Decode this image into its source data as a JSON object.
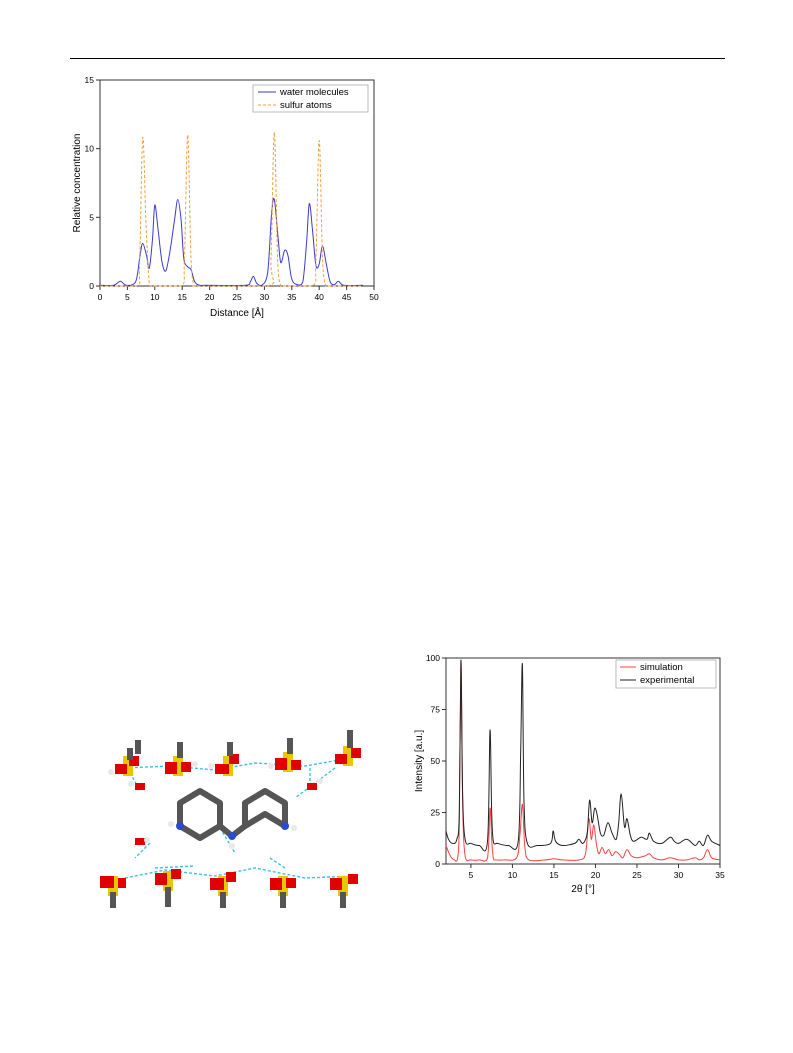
{
  "page": {
    "header_rule": true
  },
  "figures": {
    "density_profile": {
      "legend_bg": "#ffffff",
      "series_colors": {
        "water": "#3a3acc",
        "sulfur": "#f0a040"
      }
    },
    "crystal_structure": {
      "icon": "molecular-structure-image",
      "labels": {
        "nitrogen": "N",
        "hydrogen": "H"
      },
      "atom_colors": {
        "carbon": "#555555",
        "oxygen": "#e00000",
        "sulfur": "#e6c800",
        "nitrogen": "#2a4bd0",
        "hydrogen": "#e8e8e8",
        "hbond": "#40c0e0"
      }
    },
    "pxrd": {
      "series_colors": {
        "simulation": "#ff4040",
        "experimental": "#222222"
      }
    }
  },
  "chart_data": [
    {
      "type": "line",
      "title": "",
      "xlabel": "Distance [Å]",
      "ylabel": "Relative concentration",
      "xlim": [
        0,
        50
      ],
      "ylim": [
        0,
        15
      ],
      "xticks": [
        "0",
        "5",
        "10",
        "15",
        "20",
        "25",
        "30",
        "35",
        "40",
        "45",
        "50"
      ],
      "yticks": [
        "0",
        "5",
        "10",
        "15"
      ],
      "legend_position": "top-right",
      "grid": false,
      "series": [
        {
          "name": "water molecules",
          "style": "solid",
          "color": "#3a3acc",
          "x": [
            0,
            2.5,
            3.7,
            4.8,
            6.5,
            7.3,
            7.8,
            8.5,
            9.0,
            9.6,
            10.0,
            10.6,
            11.3,
            12.0,
            12.8,
            13.6,
            14.2,
            14.8,
            15.3,
            16.0,
            16.6,
            17.3,
            18.2,
            19.5,
            26.5,
            27.4,
            28.0,
            28.6,
            29.5,
            30.6,
            31.3,
            31.8,
            32.5,
            33.0,
            33.7,
            34.3,
            35.0,
            36.0,
            37.0,
            37.7,
            38.2,
            38.8,
            39.4,
            40.0,
            40.6,
            41.3,
            42.0,
            42.8,
            43.5,
            44.5,
            48
          ],
          "y": [
            0.05,
            0.05,
            0.35,
            0.05,
            0.3,
            2.2,
            3.1,
            2.2,
            1.3,
            3.5,
            5.9,
            4.1,
            1.8,
            1.1,
            2.6,
            4.8,
            6.3,
            4.8,
            2.0,
            1.4,
            1.2,
            0.3,
            0.05,
            0.05,
            0.05,
            0.3,
            0.7,
            0.2,
            0.05,
            1.0,
            5.2,
            6.3,
            3.5,
            1.7,
            2.6,
            2.2,
            0.5,
            0.1,
            0.3,
            3.2,
            6.0,
            4.0,
            1.5,
            1.6,
            2.9,
            1.6,
            0.3,
            0.1,
            0.35,
            0.05,
            0.05
          ]
        },
        {
          "name": "sulfur atoms",
          "style": "dashed",
          "color": "#f0a040",
          "x": [
            0,
            6.6,
            7.2,
            7.8,
            8.4,
            9.0,
            9.6,
            14.8,
            15.4,
            16.0,
            16.6,
            17.2,
            17.8,
            30.6,
            31.2,
            31.8,
            32.4,
            33.0,
            33.6,
            38.8,
            39.4,
            40.0,
            40.6,
            41.2,
            41.8,
            48
          ],
          "y": [
            0,
            0,
            1.5,
            10.8,
            4.5,
            0.2,
            0,
            0,
            2.0,
            11.0,
            2.0,
            0,
            0,
            0,
            2.0,
            11.2,
            2.0,
            0,
            0,
            0,
            2.0,
            10.6,
            2.0,
            0,
            0,
            0
          ]
        }
      ]
    },
    {
      "type": "line",
      "title": "",
      "xlabel": "2θ [°]",
      "ylabel": "Intensity [a.u.]",
      "xlim": [
        2,
        35
      ],
      "ylim": [
        0,
        100
      ],
      "xticks": [
        "5",
        "10",
        "15",
        "20",
        "25",
        "30",
        "35"
      ],
      "yticks": [
        "0",
        "25",
        "50",
        "75",
        "100"
      ],
      "legend_position": "top-right",
      "grid": false,
      "series": [
        {
          "name": "simulation",
          "color": "#ff4040",
          "x": [
            2,
            2.5,
            3.0,
            3.4,
            3.6,
            3.8,
            4.0,
            4.3,
            5.0,
            6.0,
            7.0,
            7.3,
            7.5,
            7.7,
            8.0,
            9.0,
            10.5,
            10.9,
            11.2,
            11.5,
            12.0,
            14.0,
            15.0,
            16.0,
            18.0,
            18.8,
            19.2,
            19.5,
            19.8,
            20.1,
            20.4,
            20.8,
            21.2,
            21.6,
            22.0,
            22.4,
            22.8,
            23.3,
            23.8,
            24.3,
            25.0,
            26.0,
            26.5,
            27.0,
            28.0,
            29.0,
            30.0,
            31.0,
            32.0,
            32.5,
            33.0,
            33.5,
            34.0,
            35.0
          ],
          "y": [
            9,
            4,
            2,
            3,
            20,
            98,
            30,
            4,
            2,
            2,
            3,
            27,
            12,
            3,
            2,
            2,
            3,
            14,
            29,
            8,
            2,
            2,
            2.5,
            2,
            2,
            5,
            22,
            12,
            19,
            10,
            5,
            8,
            5,
            7,
            4,
            6,
            5,
            3,
            7,
            4,
            3,
            4,
            5,
            3,
            2,
            3,
            2,
            2,
            3,
            2,
            3,
            7,
            3,
            2
          ]
        },
        {
          "name": "experimental",
          "color": "#222222",
          "x": [
            2,
            2.3,
            2.8,
            3.3,
            3.6,
            3.8,
            4.0,
            4.3,
            5.0,
            6.0,
            7.0,
            7.3,
            7.5,
            7.7,
            8.2,
            9.5,
            10.7,
            11.0,
            11.2,
            11.4,
            11.8,
            13.0,
            14.6,
            14.9,
            15.2,
            16.0,
            17.5,
            18.0,
            18.5,
            19.0,
            19.3,
            19.6,
            19.9,
            20.2,
            20.6,
            21.0,
            21.5,
            22.0,
            22.5,
            22.8,
            23.1,
            23.5,
            23.8,
            24.2,
            24.6,
            25.5,
            26.2,
            26.5,
            27.0,
            28.0,
            29.0,
            29.5,
            30.0,
            31.0,
            32.0,
            32.5,
            33.0,
            33.5,
            34.0,
            35.0
          ],
          "y": [
            16,
            12,
            10,
            12,
            25,
            99,
            35,
            12,
            10,
            9,
            11,
            65,
            25,
            11,
            10,
            9,
            11,
            55,
            97,
            30,
            10,
            9,
            10,
            16,
            11,
            9,
            10,
            12,
            10,
            15,
            31,
            20,
            27,
            24,
            15,
            14,
            20,
            15,
            12,
            20,
            34,
            18,
            22,
            14,
            11,
            13,
            12,
            15,
            11,
            10,
            13,
            11,
            10,
            12,
            9,
            11,
            9,
            14,
            11,
            9
          ]
        }
      ]
    }
  ]
}
